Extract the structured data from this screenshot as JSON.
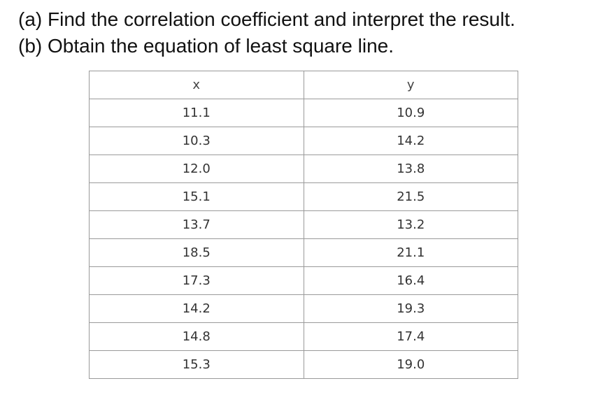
{
  "questions": [
    "(a) Find the correlation coefficient and interpret the result.",
    "(b) Obtain the equation of least square line."
  ],
  "table": {
    "headers": [
      "x",
      "y"
    ],
    "rows": [
      [
        "11.1",
        "10.9"
      ],
      [
        "10.3",
        "14.2"
      ],
      [
        "12.0",
        "13.8"
      ],
      [
        "15.1",
        "21.5"
      ],
      [
        "13.7",
        "13.2"
      ],
      [
        "18.5",
        "21.1"
      ],
      [
        "17.3",
        "16.4"
      ],
      [
        "14.2",
        "19.3"
      ],
      [
        "14.8",
        "17.4"
      ],
      [
        "15.3",
        "19.0"
      ]
    ]
  }
}
